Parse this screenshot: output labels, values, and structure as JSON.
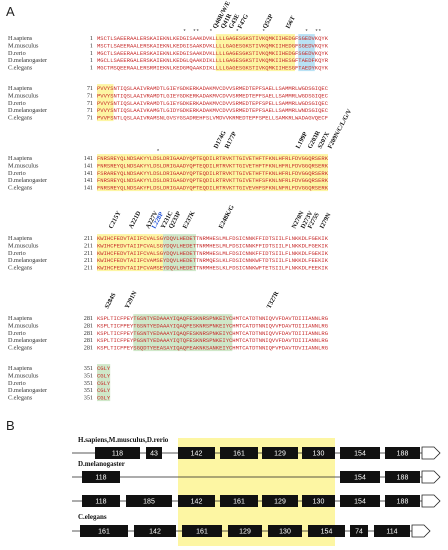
{
  "panel_a": {
    "label": "A",
    "blocks": [
      {
        "stars": "                          *  **   *       *       *            *  **   ",
        "mutations": [
          "Q40R/W/E",
          "Q41R",
          "G43E",
          "F47G",
          "Q52P",
          "I56T"
        ],
        "rows": [
          {
            "species": "H.sapiens",
            "start": 1,
            "seq": "MSCTLSAEERAALERSKAIEKNLKEDGISAAKDVKLLLLGAGESGKSTIVKQMKIIHEDGFSGEDVKQYK"
          },
          {
            "species": "M.musculus",
            "start": 1,
            "seq": "MSCTLSAEERAALERSKAIEKNLKEDGISAAKDVKLLLLGAGESGKSTIVKQMKIIHEDGFSGEDVKQYK"
          },
          {
            "species": "D.rerio",
            "start": 1,
            "seq": "MGCTLSAEERAALERSKAIEKNLKEDGISAAKDVKLLLLGAGESGKSTIVKQMKIIHEDGFSGEDVKQYK"
          },
          {
            "species": "D.melanogaster",
            "start": 1,
            "seq": "MGCLLSAEERGALERSKAIEKNLKEDGLQAAKDIKLLLLGAGESGKSTIVKQMKIIHESGFTAEDFKQYR"
          },
          {
            "species": "C.elegans",
            "start": 1,
            "seq": "MGCTMSQEERAALERSRMIEKNLKEDGMQAAKDIKLLLLGAGESGKSTIVKQMKIIHESGFTAEDYKQYK"
          }
        ]
      },
      {
        "rows": [
          {
            "species": "H.sapiens",
            "start": 71,
            "seq": "PVVYSNTIQSLAAIVRAMDTLGIEYGDKERKADAKMVCDVVSRMEDTEPFSAELLSAMMRLWGDSGIQEC"
          },
          {
            "species": "M.musculus",
            "start": 71,
            "seq": "PVVYSNTIQSLAAIVRAMDTLGIEYGDKERKADAKMVCDVVSRMEDTEPFSAELLSAMMRLWGDSGIQEC"
          },
          {
            "species": "D.rerio",
            "start": 71,
            "seq": "PVVYSNTIQSLAAIVRAMDTLGIEYGDKERKADAKMVCDVVSRMEDTEPFSPELLSAMMRLWGDSGIQEC"
          },
          {
            "species": "D.melanogaster",
            "start": 71,
            "seq": "PVVYSNTIQSLAAIVKAMGTLGIDYGDKERKADAKMVCDVVSRMEDTEPFSAELLSAMMRLWNDSGIQEC"
          },
          {
            "species": "C.elegans",
            "start": 71,
            "seq": "PVVFSNTLQSLAAIVRAMSNLGVSYGSADREHFSLVMDVVKRMEDTEPFSPELLSAMKRLWADAGVQECF"
          }
        ]
      },
      {
        "stars": "                  *                                                    ",
        "mutations": [
          "D174G",
          "R177P",
          "L199P",
          "G203R",
          "S207X",
          "F209N/C/L/G/V"
        ],
        "rows": [
          {
            "species": "H.sapiens",
            "start": 141,
            "seq": "FNRSREYQLNDSAKYYLDSLDRIGAADYQPTEQDILRTRVKTTGIVETHFTFKNLHFRLFDVGGQRSERK"
          },
          {
            "species": "M.musculus",
            "start": 141,
            "seq": "FNRSREYQLNDSAKYYLDSLDRIGAADYQPTEQDILRTRVKTTGIVETHFTFKNLHFRLFDVGGQRSERK"
          },
          {
            "species": "D.rerio",
            "start": 141,
            "seq": "FSRAREYQLNDSAKYYLDSLDRIGAADYQPTEQDILRTRVKTTGIVETHFTFKNLHFRLFDVGGQRSERK"
          },
          {
            "species": "D.melanogaster",
            "start": 141,
            "seq": "FNRSREYQLNDSAKYYLDSLDRIGAGDYQPTEQDILRTRVKTTGIVETHFSFKNLNFRLFDVGGQRSERK"
          },
          {
            "species": "C.elegans",
            "start": 141,
            "seq": "FNRSREYQLNDSAKYFLDSLDRIGAADYQPTEQDILRTRVKTTGIVEVHFSFKNLNFRLFDVGGQRSERK"
          }
        ]
      },
      {
        "mutations": [
          "C215Y",
          "A221D",
          "A227V",
          "L228P",
          "Y231C",
          "Q233P",
          "E237K",
          "E248K/G",
          "N270N",
          "D273V",
          "F275S",
          "I279N"
        ],
        "rows": [
          {
            "species": "H.sapiens",
            "start": 211,
            "seq": "KWIHCFEDVTAIIFCVALSGYDQVLHEDETTNRMHESLMLFDSICNNKFFIDTSIILFLNKKDLFGEKIK"
          },
          {
            "species": "M.musculus",
            "start": 211,
            "seq": "KWIHCFEDVTAIIFCVALSGYDQVLHEDETTNRMHESLMLFDSICNNKFFIDTSIILFLNKKDLFGEKIK"
          },
          {
            "species": "D.rerio",
            "start": 211,
            "seq": "KWIHCFEDVTAIIFCVALSGYDQVLHEDETTNRMHESLMLFDSICNNKFFIDTSIILFLNKKDLFGEKIK"
          },
          {
            "species": "D.melanogaster",
            "start": 211,
            "seq": "KWIHCFEDVTAIIFCVAMSEYDQVLHEDETTNRMQESLKLFDSICNNKWFTDTSIILFLNKKDLFEEKIK"
          },
          {
            "species": "C.elegans",
            "start": 211,
            "seq": "KWIHCFEDVTAIIFCVAMSEYDQVLHEDETTNRMHESLKLFDSICNNKWFTETSIILFLNKKDLFEEKIK"
          }
        ]
      },
      {
        "mutations": [
          "S284S",
          "Y291N",
          "T327R"
        ],
        "rows": [
          {
            "species": "H.sapiens",
            "start": 281,
            "seq": "KSPLTICFPEYTGSNTYEDAAAYIQAQFESKNRSPNKEIYCHMTCATDTNNIQVVFDAVTDIIIANNLRG"
          },
          {
            "species": "M.musculus",
            "start": 281,
            "seq": "KSPLTICFPEYTGSNTYEDAAAYIQAQFESKNRSPNKEIYCHMTCATDTNNIQVVFDAVTDIIIANNLRG"
          },
          {
            "species": "D.rerio",
            "start": 281,
            "seq": "KSPLTICFPEYTGSNTYEDAAAYIQAQFESKNRSPNKEIYCHMTCATDTNNIQVVFDAVTDIIIANNLRG"
          },
          {
            "species": "D.melanogaster",
            "start": 281,
            "seq": "KSPLTICFPEYPGSNTYEDAAAYIQTQFESKNRSPNKEIYCHMTCATDTNNIQVVFDAVTDIIIANNLRG"
          },
          {
            "species": "C.elegans",
            "start": 281,
            "seq": "KSPLTICFPEYSGQDTYEEASAYIQAQFEAKNKSANKEIYCHMTCATDTNNIQFVFDAVTDVIIANNLRG"
          }
        ]
      },
      {
        "rows": [
          {
            "species": "H.sapiens",
            "start": 351,
            "seq": "CGLY"
          },
          {
            "species": "M.musculus",
            "start": 351,
            "seq": "CGLY"
          },
          {
            "species": "D.rerio",
            "start": 351,
            "seq": "CGLY"
          },
          {
            "species": "D.melanogaster",
            "start": 351,
            "seq": "CGLY"
          },
          {
            "species": "C.elegans",
            "start": 351,
            "seq": "CGLY"
          }
        ]
      }
    ]
  },
  "panel_b": {
    "label": "B",
    "groups": [
      {
        "label": "H.sapiens,M.musculus,D.rerio",
        "rows": [
          {
            "exons": [
              118,
              43,
              142,
              161,
              129,
              130,
              154,
              188
            ]
          }
        ]
      },
      {
        "label": "D.melanogaster",
        "rows": [
          {
            "exons": [
              118,
              154,
              188
            ]
          },
          {
            "exons": [
              118,
              185,
              142,
              161,
              129,
              130,
              154,
              188
            ]
          }
        ]
      },
      {
        "label": "C.elegans",
        "rows": [
          {
            "exons": [
              161,
              142,
              161,
              129,
              130,
              154,
              74,
              114
            ]
          }
        ]
      }
    ]
  }
}
